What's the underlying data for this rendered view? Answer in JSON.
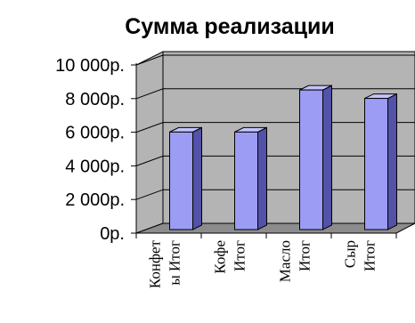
{
  "chart_data": {
    "type": "bar",
    "title": "Сумма реализации",
    "categories": [
      "Конфеты Итог",
      "Кофе Итог",
      "Масло Итог",
      "Сыр Итог"
    ],
    "category_lines": [
      [
        "Конфет",
        "ы Итог"
      ],
      [
        "Кофе",
        "Итог"
      ],
      [
        "Масло",
        "Итог"
      ],
      [
        "Сыр",
        "Итог"
      ]
    ],
    "values": [
      5800,
      5800,
      8300,
      7800
    ],
    "ylim": [
      0,
      10000
    ],
    "yticks": [
      0,
      2000,
      4000,
      6000,
      8000,
      10000
    ],
    "ytick_labels": [
      "0р.",
      "2 000р.",
      "4 000р.",
      "6 000р.",
      "8 000р.",
      "10 000р."
    ],
    "xlabel": "",
    "ylabel": "",
    "grid": true,
    "style": "3d-bar",
    "colors": {
      "bar_front": "#9c9cf4",
      "bar_side": "#5252a8",
      "bar_top": "#c4c4fc",
      "wall": "#b4b4b4",
      "floor": "#8c8c8c",
      "gridline": "#000000"
    }
  }
}
